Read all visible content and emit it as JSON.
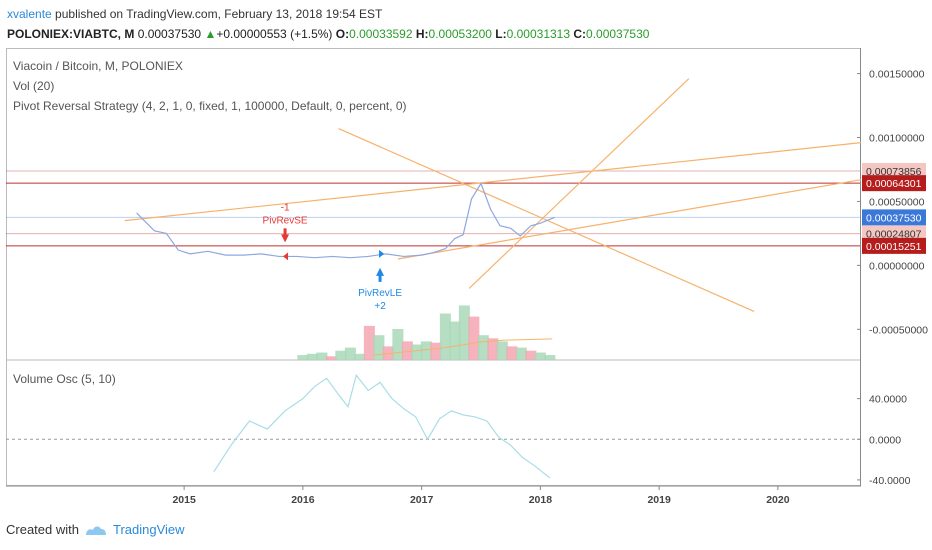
{
  "header": {
    "author": "xvalente",
    "published_text": "published on TradingView.com, February 13, 2018 19:54 EST",
    "symbol": "POLONIEX:VIABTC, M",
    "price": "0.00037530",
    "change_arrow": "▲",
    "change": "+0.00000553 (+1.5%)",
    "o_label": "O:",
    "o_value": "0.00033592",
    "h_label": "H:",
    "h_value": "0.00053200",
    "l_label": "L:",
    "l_value": "0.00031313",
    "c_label": "C:",
    "c_value": "0.00037530"
  },
  "legend": {
    "line1": "Viacoin / Bitcoin, M, POLONIEX",
    "line2": "Vol (20)",
    "line3": "Pivot Reversal Strategy (4, 2, 1, 0, fixed, 1, 100000, Default, 0, percent, 0)"
  },
  "osc_legend": "Volume Osc (5, 10)",
  "footer": {
    "created": "Created with",
    "brand": "TradingView"
  },
  "colors": {
    "price_line": "#8fa7e0",
    "trend_line": "#f6b26b",
    "red_level": "#b71c1c",
    "blue_level": "#3c78d8",
    "vol_up": "#a8d8b9",
    "vol_down": "#f4a6b2",
    "osc_line": "#a8dde8",
    "signal_short": "#e53935",
    "signal_long": "#1e88e5"
  },
  "chart_data": {
    "type": "line",
    "x_axis": {
      "ticks": [
        "2015",
        "2016",
        "2017",
        "2018",
        "2019",
        "2020"
      ],
      "range": [
        2013.5,
        2020.7
      ]
    },
    "y_axis": {
      "ticks": [
        "0.00150000",
        "0.00100000",
        "0.00050000",
        "0.00000000",
        "-0.00050000"
      ],
      "range": [
        -0.00074,
        0.0017
      ]
    },
    "price_series": {
      "x": [
        2014.6,
        2014.75,
        2014.85,
        2014.95,
        2015.05,
        2015.2,
        2015.35,
        2015.5,
        2015.65,
        2015.8,
        2015.95,
        2016.1,
        2016.25,
        2016.4,
        2016.55,
        2016.7,
        2016.85,
        2017.0,
        2017.1,
        2017.2,
        2017.28,
        2017.35,
        2017.42,
        2017.5,
        2017.58,
        2017.66,
        2017.75,
        2017.83,
        2017.92,
        2018.0,
        2018.12
      ],
      "y": [
        0.00041,
        0.00027,
        0.00025,
        0.00012,
        9e-05,
        0.00011,
        8e-05,
        8e-05,
        9e-05,
        7e-05,
        7e-05,
        6e-05,
        7e-05,
        6e-05,
        7e-05,
        9e-05,
        7e-05,
        8e-05,
        0.0001,
        0.00013,
        0.00021,
        0.00024,
        0.00052,
        0.00064,
        0.00044,
        0.00031,
        0.00029,
        0.00023,
        0.00031,
        0.00033,
        0.0003753
      ]
    },
    "levels": [
      {
        "label": "0.00073856",
        "value": 0.00073856,
        "color": "#b71c1c",
        "style": "light"
      },
      {
        "label": "0.00064301",
        "value": 0.00064301,
        "color": "#b71c1c",
        "style": "solid"
      },
      {
        "label": "0.00037530",
        "value": 0.0003753,
        "color": "#3c78d8",
        "style": "light"
      },
      {
        "label": "0.00024807",
        "value": 0.00024807,
        "color": "#b71c1c",
        "style": "light"
      },
      {
        "label": "0.00015251",
        "value": 0.00015251,
        "color": "#b71c1c",
        "style": "solid"
      }
    ],
    "trendlines": [
      {
        "x1": 2014.5,
        "y1": 0.00035,
        "x2": 2020.7,
        "y2": 0.00096
      },
      {
        "x1": 2016.3,
        "y1": 0.00107,
        "x2": 2019.8,
        "y2": -0.00036
      },
      {
        "x1": 2017.4,
        "y1": -0.00018,
        "x2": 2019.25,
        "y2": 0.00146
      },
      {
        "x1": 2016.8,
        "y1": 5e-05,
        "x2": 2020.7,
        "y2": 0.00067
      }
    ],
    "signals": [
      {
        "name": "-1",
        "label": "PivRevSE",
        "x": 2015.85,
        "type": "short"
      },
      {
        "name": "PivRevLE",
        "label": "+2",
        "x": 2016.65,
        "type": "long"
      }
    ],
    "volume": {
      "x": [
        2016.0,
        2016.08,
        2016.16,
        2016.24,
        2016.32,
        2016.4,
        2016.48,
        2016.56,
        2016.64,
        2016.72,
        2016.8,
        2016.88,
        2016.96,
        2017.04,
        2017.12,
        2017.2,
        2017.28,
        2017.36,
        2017.44,
        2017.52,
        2017.6,
        2017.68,
        2017.76,
        2017.84,
        2017.92,
        2018.0,
        2018.08
      ],
      "values": [
        0.08,
        0.1,
        0.12,
        0.06,
        0.15,
        0.2,
        0.1,
        0.55,
        0.4,
        0.22,
        0.5,
        0.3,
        0.25,
        0.3,
        0.28,
        0.75,
        0.62,
        0.88,
        0.7,
        0.4,
        0.35,
        0.3,
        0.22,
        0.2,
        0.15,
        0.12,
        0.08
      ],
      "up": [
        true,
        true,
        true,
        false,
        true,
        true,
        true,
        false,
        true,
        false,
        true,
        false,
        true,
        true,
        false,
        true,
        true,
        true,
        false,
        true,
        false,
        true,
        false,
        true,
        false,
        true,
        true
      ]
    },
    "volume_ma": {
      "x": [
        2016.6,
        2016.9,
        2017.2,
        2017.5,
        2017.7,
        2018.1
      ],
      "values": [
        0.08,
        0.14,
        0.2,
        0.29,
        0.32,
        0.34
      ]
    },
    "oscillator": {
      "y_ticks": [
        "40.0000",
        "0.0000",
        "-40.0000"
      ],
      "y_range": [
        -46,
        78
      ],
      "x": [
        2015.25,
        2015.4,
        2015.55,
        2015.7,
        2015.85,
        2016.0,
        2016.1,
        2016.2,
        2016.3,
        2016.38,
        2016.45,
        2016.55,
        2016.65,
        2016.75,
        2016.85,
        2016.95,
        2017.05,
        2017.15,
        2017.25,
        2017.35,
        2017.45,
        2017.55,
        2017.65,
        2017.75,
        2017.85,
        2017.95,
        2018.08
      ],
      "values": [
        -32,
        -5,
        18,
        10,
        28,
        40,
        52,
        60,
        44,
        32,
        63,
        48,
        56,
        40,
        30,
        22,
        0,
        20,
        28,
        24,
        22,
        18,
        2,
        -6,
        -18,
        -26,
        -38
      ]
    }
  }
}
